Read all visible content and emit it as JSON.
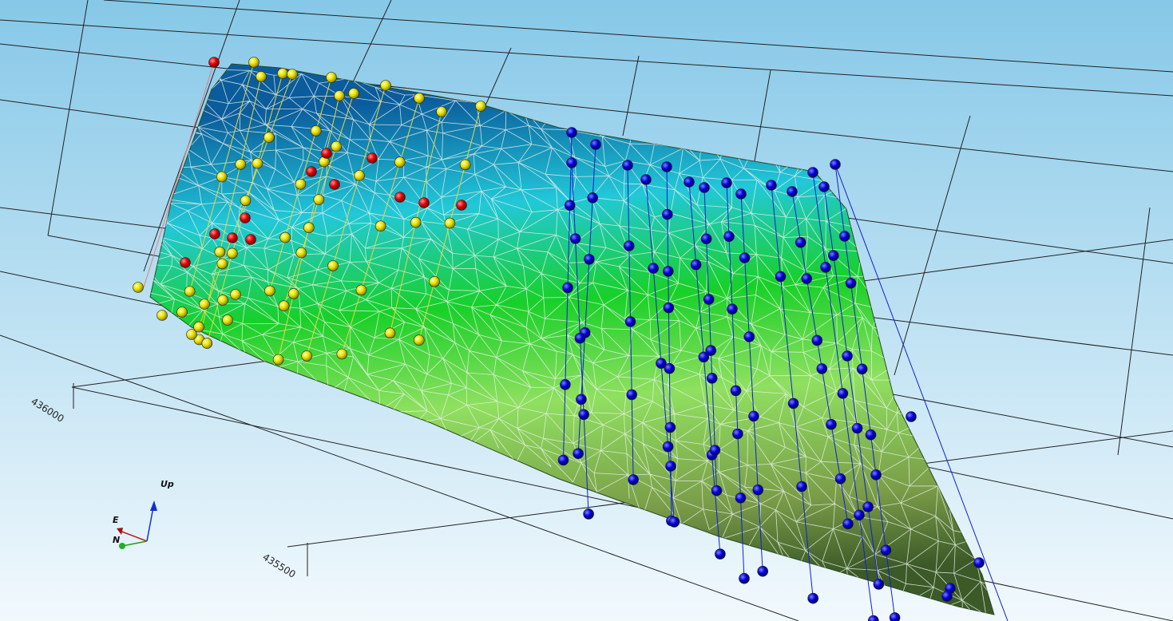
{
  "axis_labels": [
    "436000",
    "435500"
  ],
  "orientation": {
    "up": "Up",
    "east": "E",
    "north": "N"
  }
}
